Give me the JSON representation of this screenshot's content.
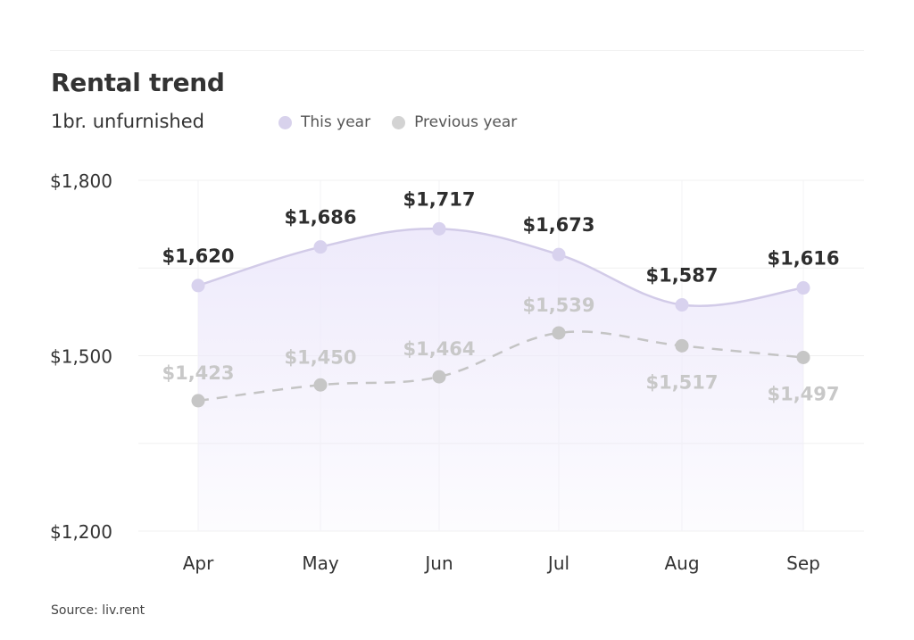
{
  "header": {
    "title": "Rental trend",
    "subtitle": "1br. unfurnished"
  },
  "legend": [
    {
      "label": "This year",
      "color": "#d8d2ec"
    },
    {
      "label": "Previous year",
      "color": "#d3d3d3"
    }
  ],
  "footer": {
    "source": "Source: liv.rent"
  },
  "colors": {
    "this_year_line": "#d2cbe8",
    "this_year_marker": "#d8d2ee",
    "area_top": "#eeeafb",
    "prev_year_line": "#c4c4c4",
    "prev_year_marker": "#c6c6c6",
    "this_year_label": "#2e2e2e",
    "prev_year_label": "#c8c8c8"
  },
  "chart_data": {
    "type": "area",
    "title": "Rental trend",
    "subtitle": "1br. unfurnished",
    "categories": [
      "Apr",
      "May",
      "Jun",
      "Jul",
      "Aug",
      "Sep"
    ],
    "series": [
      {
        "name": "This year",
        "values": [
          1620,
          1686,
          1717,
          1673,
          1587,
          1616
        ],
        "labels": [
          "$1,620",
          "$1,686",
          "$1,717",
          "$1,673",
          "$1,587",
          "$1,616"
        ],
        "style": "solid smooth line with filled area"
      },
      {
        "name": "Previous year",
        "values": [
          1423,
          1450,
          1464,
          1539,
          1517,
          1497
        ],
        "labels": [
          "$1,423",
          "$1,450",
          "$1,464",
          "$1,539",
          "$1,517",
          "$1,497"
        ],
        "style": "dashed smooth line"
      }
    ],
    "yticks": [
      1200,
      1500,
      1800
    ],
    "ytick_labels": [
      "$1,200",
      "$1,500",
      "$1,800"
    ],
    "ylim": [
      1200,
      1800
    ],
    "xlabel": "",
    "ylabel": "",
    "grid": true,
    "legend_position": "top",
    "source": "Source: liv.rent"
  }
}
